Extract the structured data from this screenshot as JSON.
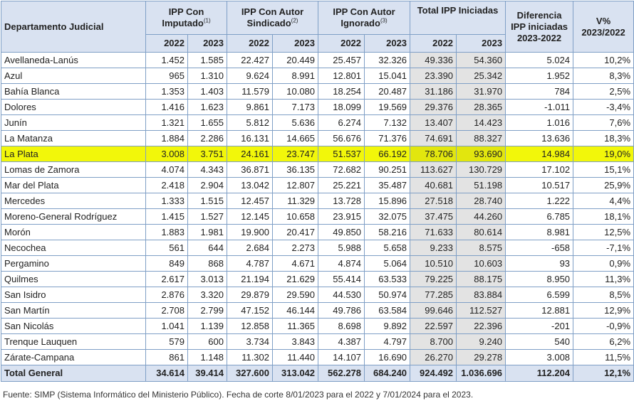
{
  "header": {
    "departamento": "Departamento Judicial",
    "groups": [
      {
        "line1": "IPP Con",
        "line2": "Imputado",
        "sup": "(1)"
      },
      {
        "line1": "IPP Con Autor",
        "line2": "Sindicado",
        "sup": "(2)"
      },
      {
        "line1": "IPP Con Autor",
        "line2": "Ignorado",
        "sup": "(3)"
      },
      {
        "line1": "Total IPP Iniciadas",
        "line2": "",
        "sup": ""
      }
    ],
    "diferencia": {
      "line1": "Diferencia",
      "line2": "IPP iniciadas",
      "line3": "2023-2022"
    },
    "variacion": {
      "line1": "V%",
      "line2": "2023/2022"
    },
    "years": [
      "2022",
      "2023",
      "2022",
      "2023",
      "2022",
      "2023",
      "2022",
      "2023"
    ]
  },
  "rows": [
    {
      "name": "Avellaneda-Lanús",
      "v": [
        "1.452",
        "1.585",
        "22.427",
        "20.449",
        "25.457",
        "32.326",
        "49.336",
        "54.360",
        "5.024",
        "10,2%"
      ]
    },
    {
      "name": "Azul",
      "v": [
        "965",
        "1.310",
        "9.624",
        "8.991",
        "12.801",
        "15.041",
        "23.390",
        "25.342",
        "1.952",
        "8,3%"
      ]
    },
    {
      "name": "Bahía Blanca",
      "v": [
        "1.353",
        "1.403",
        "11.579",
        "10.080",
        "18.254",
        "20.487",
        "31.186",
        "31.970",
        "784",
        "2,5%"
      ]
    },
    {
      "name": "Dolores",
      "v": [
        "1.416",
        "1.623",
        "9.861",
        "7.173",
        "18.099",
        "19.569",
        "29.376",
        "28.365",
        "-1.011",
        "-3,4%"
      ]
    },
    {
      "name": "Junín",
      "v": [
        "1.321",
        "1.655",
        "5.812",
        "5.636",
        "6.274",
        "7.132",
        "13.407",
        "14.423",
        "1.016",
        "7,6%"
      ]
    },
    {
      "name": "La Matanza",
      "v": [
        "1.884",
        "2.286",
        "16.131",
        "14.665",
        "56.676",
        "71.376",
        "74.691",
        "88.327",
        "13.636",
        "18,3%"
      ]
    },
    {
      "name": "La Plata",
      "v": [
        "3.008",
        "3.751",
        "24.161",
        "23.747",
        "51.537",
        "66.192",
        "78.706",
        "93.690",
        "14.984",
        "19,0%"
      ],
      "highlight": true
    },
    {
      "name": "Lomas de Zamora",
      "v": [
        "4.074",
        "4.343",
        "36.871",
        "36.135",
        "72.682",
        "90.251",
        "113.627",
        "130.729",
        "17.102",
        "15,1%"
      ]
    },
    {
      "name": "Mar del Plata",
      "v": [
        "2.418",
        "2.904",
        "13.042",
        "12.807",
        "25.221",
        "35.487",
        "40.681",
        "51.198",
        "10.517",
        "25,9%"
      ]
    },
    {
      "name": "Mercedes",
      "v": [
        "1.333",
        "1.515",
        "12.457",
        "11.329",
        "13.728",
        "15.896",
        "27.518",
        "28.740",
        "1.222",
        "4,4%"
      ]
    },
    {
      "name": "Moreno-General Rodríguez",
      "v": [
        "1.415",
        "1.527",
        "12.145",
        "10.658",
        "23.915",
        "32.075",
        "37.475",
        "44.260",
        "6.785",
        "18,1%"
      ]
    },
    {
      "name": "Morón",
      "v": [
        "1.883",
        "1.981",
        "19.900",
        "20.417",
        "49.850",
        "58.216",
        "71.633",
        "80.614",
        "8.981",
        "12,5%"
      ]
    },
    {
      "name": "Necochea",
      "v": [
        "561",
        "644",
        "2.684",
        "2.273",
        "5.988",
        "5.658",
        "9.233",
        "8.575",
        "-658",
        "-7,1%"
      ]
    },
    {
      "name": "Pergamino",
      "v": [
        "849",
        "868",
        "4.787",
        "4.671",
        "4.874",
        "5.064",
        "10.510",
        "10.603",
        "93",
        "0,9%"
      ]
    },
    {
      "name": "Quilmes",
      "v": [
        "2.617",
        "3.013",
        "21.194",
        "21.629",
        "55.414",
        "63.533",
        "79.225",
        "88.175",
        "8.950",
        "11,3%"
      ]
    },
    {
      "name": "San Isidro",
      "v": [
        "2.876",
        "3.320",
        "29.879",
        "29.590",
        "44.530",
        "50.974",
        "77.285",
        "83.884",
        "6.599",
        "8,5%"
      ]
    },
    {
      "name": "San Martín",
      "v": [
        "2.708",
        "2.799",
        "47.152",
        "46.144",
        "49.786",
        "63.584",
        "99.646",
        "112.527",
        "12.881",
        "12,9%"
      ]
    },
    {
      "name": "San Nicolás",
      "v": [
        "1.041",
        "1.139",
        "12.858",
        "11.365",
        "8.698",
        "9.892",
        "22.597",
        "22.396",
        "-201",
        "-0,9%"
      ]
    },
    {
      "name": "Trenque Lauquen",
      "v": [
        "579",
        "600",
        "3.734",
        "3.843",
        "4.387",
        "4.797",
        "8.700",
        "9.240",
        "540",
        "6,2%"
      ]
    },
    {
      "name": "Zárate-Campana",
      "v": [
        "861",
        "1.148",
        "11.302",
        "11.440",
        "14.107",
        "16.690",
        "26.270",
        "29.278",
        "3.008",
        "11,5%"
      ]
    }
  ],
  "total": {
    "name": "Total General",
    "v": [
      "34.614",
      "39.414",
      "327.600",
      "313.042",
      "562.278",
      "684.240",
      "924.492",
      "1.036.696",
      "112.204",
      "12,1%"
    ]
  },
  "footnote": "Fuente: SIMP (Sistema Informático del Ministerio Público). Fecha de corte  8/01/2023 para el 2022 y 7/01/2024 para el 2023.",
  "colors": {
    "header_bg": "#d9e2f1",
    "border": "#7f9fc6",
    "highlight": "#f2f70a",
    "total_col_shade": "#e3e3e3"
  }
}
